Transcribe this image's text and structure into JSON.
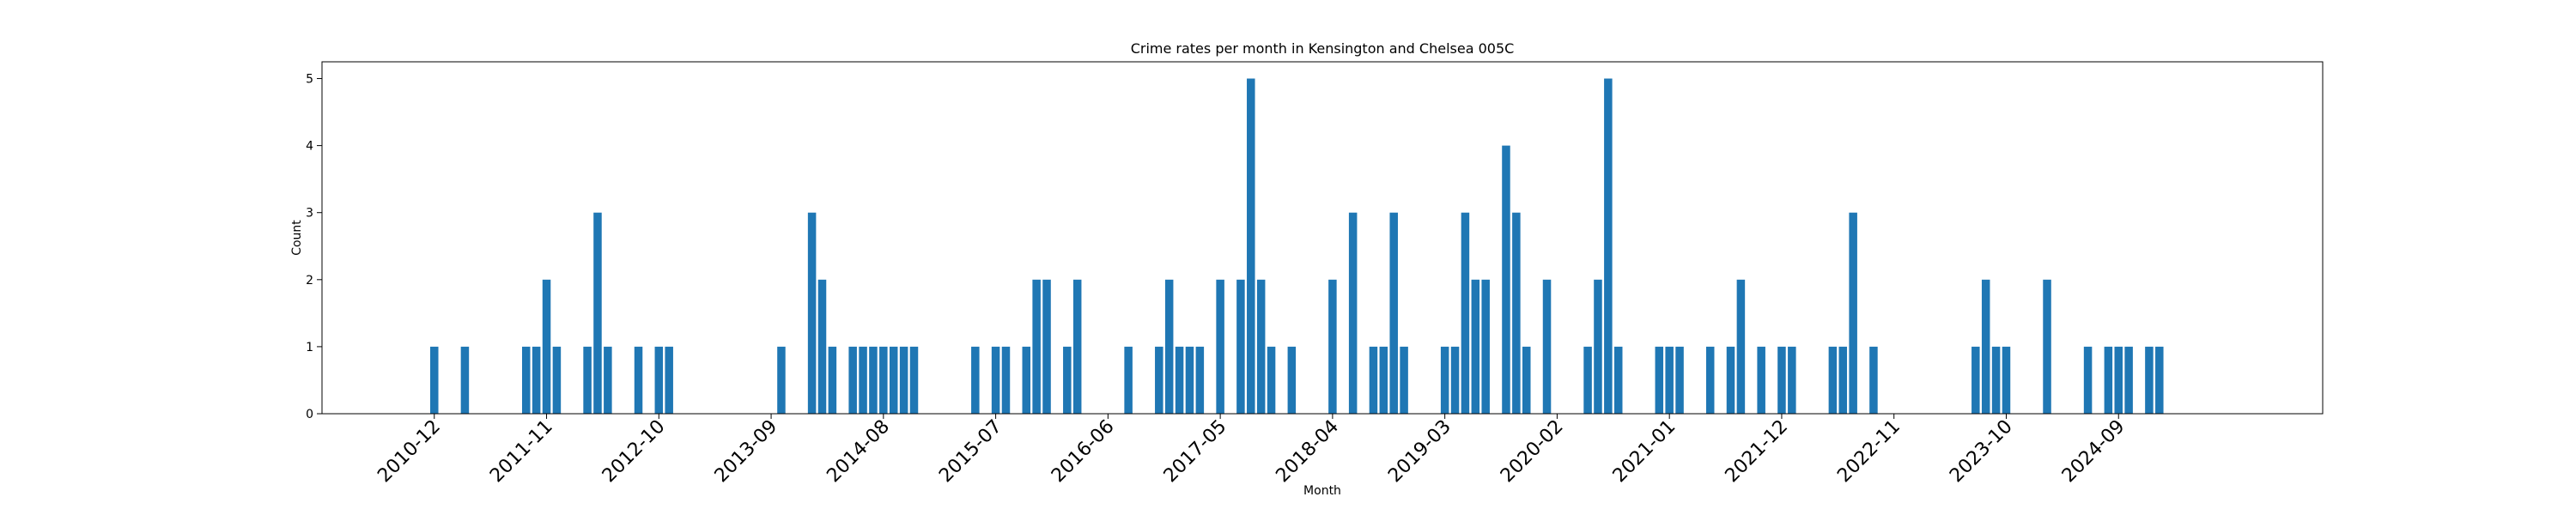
{
  "chart_data": {
    "type": "bar",
    "title": "Crime rates per month in Kensington and Chelsea 005C",
    "xlabel": "Month",
    "ylabel": "Count",
    "ylim": [
      0,
      5.25
    ],
    "yticks": [
      0,
      1,
      2,
      3,
      4,
      5
    ],
    "xlim": [
      "2010-01",
      "2026-05"
    ],
    "xtick_labels": [
      "2010-12",
      "2011-11",
      "2012-10",
      "2013-09",
      "2014-08",
      "2015-07",
      "2016-06",
      "2017-05",
      "2018-04",
      "2019-03",
      "2020-02",
      "2021-01",
      "2021-12",
      "2022-11",
      "2023-10",
      "2024-09"
    ],
    "bar_color": "#1f77b4",
    "grid": false,
    "categories": [
      "2010-12",
      "2011-03",
      "2011-09",
      "2011-10",
      "2011-11",
      "2011-12",
      "2012-03",
      "2012-04",
      "2012-05",
      "2012-08",
      "2012-10",
      "2012-11",
      "2013-10",
      "2014-01",
      "2014-02",
      "2014-03",
      "2014-05",
      "2014-06",
      "2014-07",
      "2014-08",
      "2014-09",
      "2014-10",
      "2014-11",
      "2015-05",
      "2015-07",
      "2015-08",
      "2015-10",
      "2015-11",
      "2015-12",
      "2016-02",
      "2016-03",
      "2016-08",
      "2016-11",
      "2016-12",
      "2017-01",
      "2017-02",
      "2017-03",
      "2017-05",
      "2017-07",
      "2017-08",
      "2017-09",
      "2017-10",
      "2017-12",
      "2018-04",
      "2018-06",
      "2018-08",
      "2018-09",
      "2018-10",
      "2018-11",
      "2019-03",
      "2019-04",
      "2019-05",
      "2019-06",
      "2019-07",
      "2019-09",
      "2019-10",
      "2019-11",
      "2020-01",
      "2020-05",
      "2020-06",
      "2020-07",
      "2020-08",
      "2020-12",
      "2021-01",
      "2021-02",
      "2021-05",
      "2021-07",
      "2021-08",
      "2021-10",
      "2021-12",
      "2022-01",
      "2022-05",
      "2022-06",
      "2022-07",
      "2022-09",
      "2023-07",
      "2023-08",
      "2023-09",
      "2023-10",
      "2024-02",
      "2024-06",
      "2024-08",
      "2024-09",
      "2024-10",
      "2024-12",
      "2025-01"
    ],
    "values": [
      1,
      1,
      1,
      1,
      2,
      1,
      1,
      3,
      1,
      1,
      1,
      1,
      1,
      3,
      2,
      1,
      1,
      1,
      1,
      1,
      1,
      1,
      1,
      1,
      1,
      1,
      1,
      2,
      2,
      1,
      2,
      1,
      1,
      2,
      1,
      1,
      1,
      2,
      2,
      5,
      2,
      1,
      1,
      2,
      3,
      1,
      1,
      3,
      1,
      1,
      1,
      3,
      2,
      2,
      4,
      3,
      1,
      2,
      1,
      2,
      5,
      1,
      1,
      1,
      1,
      1,
      1,
      2,
      1,
      1,
      1,
      1,
      1,
      3,
      1,
      1,
      2,
      1,
      1,
      2,
      1,
      1,
      1,
      1,
      1,
      1
    ]
  }
}
